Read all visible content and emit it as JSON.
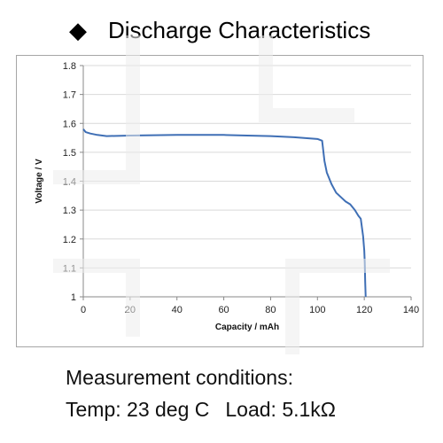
{
  "header": {
    "bullet_icon": "diamond-bullet-icon",
    "title": "Discharge Characteristics"
  },
  "chart_data": {
    "type": "line",
    "xlabel": "Capacity  /  mAh",
    "ylabel": "Voltage  /  V",
    "xlim": [
      0,
      140
    ],
    "ylim": [
      1.0,
      1.8
    ],
    "x_ticks": [
      "0",
      "20",
      "40",
      "60",
      "80",
      "100",
      "120",
      "140"
    ],
    "y_ticks": [
      "1",
      "1.1",
      "1.2",
      "1.3",
      "1.4",
      "1.5",
      "1.6",
      "1.7",
      "1.8"
    ],
    "grid": "horizontal",
    "series": [
      {
        "color": "#3f6fb5",
        "x": [
          0,
          1,
          3,
          6,
          10,
          20,
          40,
          60,
          70,
          80,
          90,
          100,
          102,
          103,
          104,
          106,
          108,
          110,
          112,
          114,
          116,
          117.5,
          118.5,
          119,
          119.5,
          119.8,
          120,
          120.2,
          120.4,
          120.6
        ],
        "y": [
          1.58,
          1.57,
          1.565,
          1.56,
          1.556,
          1.558,
          1.56,
          1.56,
          1.558,
          1.556,
          1.552,
          1.546,
          1.54,
          1.47,
          1.43,
          1.39,
          1.36,
          1.345,
          1.33,
          1.32,
          1.3,
          1.28,
          1.27,
          1.24,
          1.21,
          1.18,
          1.16,
          1.12,
          1.05,
          1.0
        ]
      }
    ]
  },
  "conditions": {
    "line1": "Measurement conditions:",
    "temp": "Temp: 23 deg C",
    "load": "Load: 5.1kΩ"
  }
}
